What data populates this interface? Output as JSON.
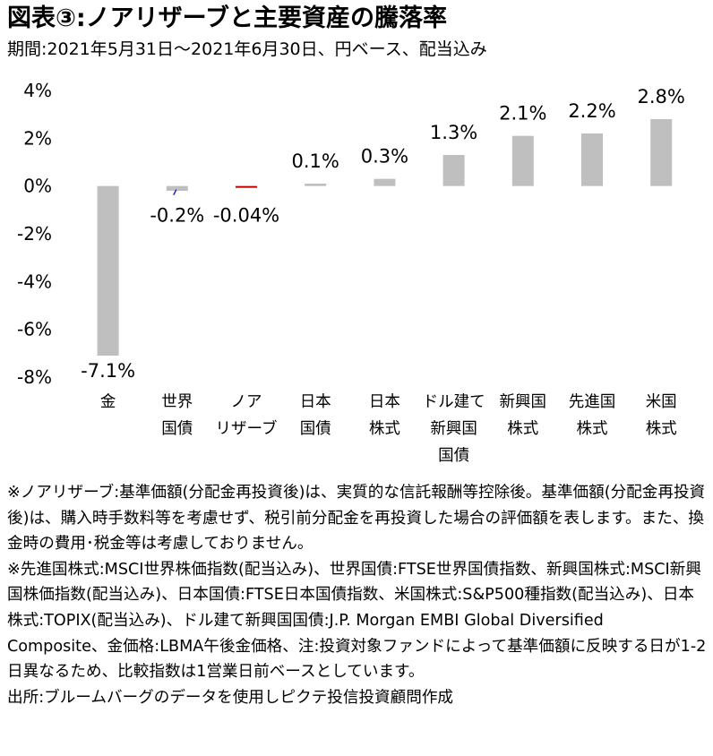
{
  "header": {
    "title": "図表③:ノアリザーブと主要資産の騰落率",
    "subtitle": "期間:2021年5月31日～2021年6月30日、円ベース、配当込み"
  },
  "chart_data": {
    "type": "bar",
    "title": "図表③:ノアリザーブと主要資産の騰落率",
    "subtitle": "期間:2021年5月31日～2021年6月30日、円ベース、配当込み",
    "categories": [
      [
        "金"
      ],
      [
        "世界",
        "国債"
      ],
      [
        "ノア",
        "リザーブ"
      ],
      [
        "日本",
        "国債"
      ],
      [
        "日本",
        "株式"
      ],
      [
        "ドル建て",
        "新興国",
        "国債"
      ],
      [
        "新興国",
        "株式"
      ],
      [
        "先進国",
        "株式"
      ],
      [
        "米国",
        "株式"
      ]
    ],
    "values": [
      -7.1,
      -0.2,
      -0.04,
      0.1,
      0.3,
      1.3,
      2.1,
      2.2,
      2.8
    ],
    "data_labels": [
      "-7.1%",
      "-0.2%",
      "-0.04%",
      "0.1%",
      "0.3%",
      "1.3%",
      "2.1%",
      "2.2%",
      "2.8%"
    ],
    "bar_colors": [
      "#bfbfbf",
      "#bfbfbf",
      "#c00000",
      "#bfbfbf",
      "#bfbfbf",
      "#bfbfbf",
      "#bfbfbf",
      "#bfbfbf",
      "#bfbfbf"
    ],
    "ylim": [
      -8,
      4
    ],
    "yticks": [
      4,
      2,
      0,
      -2,
      -4,
      -6,
      -8
    ],
    "ytick_labels": [
      "4%",
      "2%",
      "0%",
      "-2%",
      "-4%",
      "-6%",
      "-8%"
    ],
    "xlabel": "",
    "ylabel": "",
    "grid": false,
    "legend": "none"
  },
  "notes": {
    "para1": "※ノアリザーブ:基準価額(分配金再投資後)は、実質的な信託報酬等控除後。基準価額(分配金再投資後)は、購入時手数料等を考慮せず、税引前分配金を再投資した場合の評価額を表します。また、換金時の費用･税金等は考慮しておりません。",
    "para2": "※先進国株式:MSCI世界株価指数(配当込み)、世界国債:FTSE世界国債指数、新興国株式:MSCI新興国株価指数(配当込み)、日本国債:FTSE日本国債指数、米国株式:S&P500種指数(配当込み)、日本株式:TOPIX(配当込み)、ドル建て新興国国債:J.P. Morgan EMBI Global Diversified Composite、金価格:LBMA午後金価格、注:投資対象ファンドによって基準価額に反映する日が1-2日異なるため、比較指数は1営業日前ベースとしています。",
    "source": "出所:ブルームバーグのデータを使用しピクテ投信投資顧問作成"
  }
}
